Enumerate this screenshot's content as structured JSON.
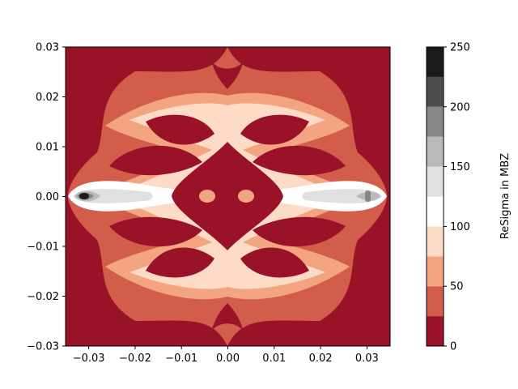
{
  "chart_data": {
    "type": "contour",
    "title": "",
    "xlabel": "",
    "ylabel": "",
    "xlim": [
      -0.035,
      0.035
    ],
    "ylim": [
      -0.03,
      0.03
    ],
    "x_ticks": [
      -0.03,
      -0.02,
      -0.01,
      0.0,
      0.01,
      0.02,
      0.03
    ],
    "x_tick_labels": [
      "−0.03",
      "−0.02",
      "−0.01",
      "0.00",
      "0.01",
      "0.02",
      "0.03"
    ],
    "y_ticks": [
      0.03,
      0.02,
      0.01,
      0.0,
      -0.01,
      -0.02,
      -0.03
    ],
    "y_tick_labels": [
      "0.03",
      "0.02",
      "0.01",
      "0.00",
      "−0.01",
      "−0.02",
      "−0.03"
    ],
    "colorbar": {
      "label": "ReSigma in MBZ",
      "range": [
        0,
        250
      ],
      "ticks": [
        0,
        50,
        100,
        150,
        200,
        250
      ],
      "tick_labels": [
        "0",
        "50",
        "100",
        "150",
        "200",
        "250"
      ],
      "levels": [
        0,
        25,
        50,
        75,
        100,
        125,
        150,
        175,
        200,
        225,
        250
      ],
      "colormap": "RdGy",
      "colors": [
        "#9a1228",
        "#d25d4a",
        "#f3a582",
        "#fddbc7",
        "#ffffff",
        "#e0e0e0",
        "#bababa",
        "#878787",
        "#4d4d4d",
        "#1a1a1a"
      ]
    },
    "grid": false,
    "legend": "none"
  }
}
